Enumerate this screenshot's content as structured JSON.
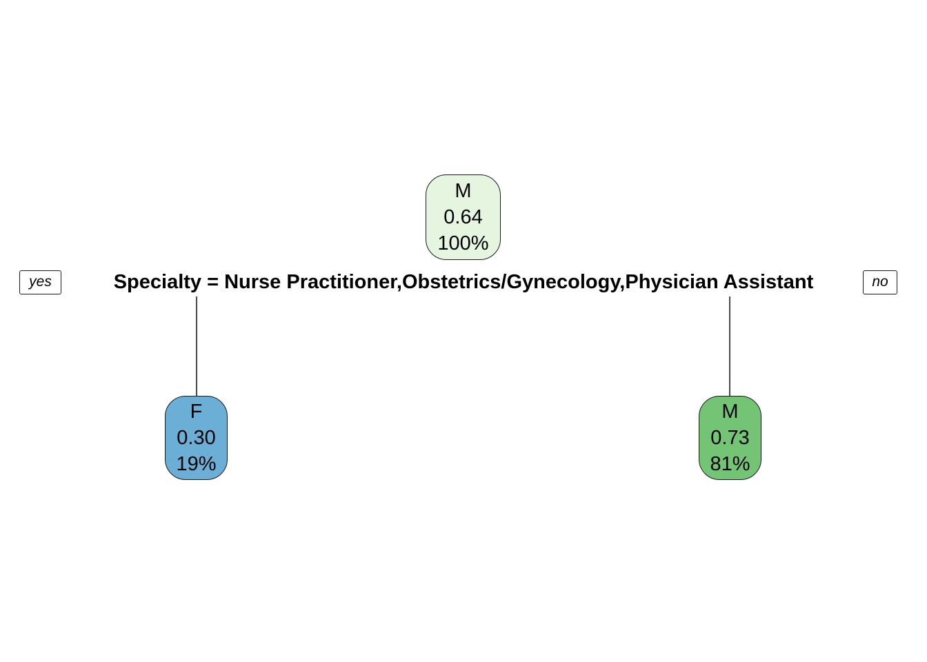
{
  "tree": {
    "split": {
      "label": "Specialty = Nurse Practitioner,Obstetrics/Gynecology,Physician Assistant",
      "yes_label": "yes",
      "no_label": "no"
    },
    "nodes": {
      "root": {
        "class": "M",
        "prob": "0.64",
        "pct": "100%",
        "fill": "#e5f5e0"
      },
      "left": {
        "class": "F",
        "prob": "0.30",
        "pct": "19%",
        "fill": "#6baed6"
      },
      "right": {
        "class": "M",
        "prob": "0.73",
        "pct": "81%",
        "fill": "#74c476"
      }
    }
  }
}
